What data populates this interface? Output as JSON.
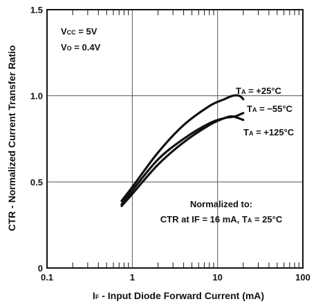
{
  "chart_data": {
    "type": "line",
    "x_scale": "log",
    "xlim": [
      0.1,
      100
    ],
    "ylim": [
      0,
      1.5
    ],
    "x_ticks": [
      "0.1",
      "1",
      "10",
      "100"
    ],
    "y_ticks": [
      "0",
      "0.5",
      "1.0",
      "1.5"
    ],
    "xlabel": {
      "main": "I",
      "sub": "F",
      "rest": " - Input Diode Forward Current (mA)"
    },
    "ylabel": "CTR - Normalized Current Transfer Ratio",
    "grid": true,
    "conditions": [
      {
        "main": "V",
        "sub": "CC",
        "rest": " = 5V"
      },
      {
        "main": "V",
        "sub": "O",
        "rest": " = 0.4V"
      }
    ],
    "note": {
      "line1": "Normalized to:",
      "line2_prefix": "CTR at IF = 16 mA, T",
      "line2_sub": "A",
      "line2_rest": " = 25°C"
    },
    "series": [
      {
        "main": "T",
        "sub": "A",
        "rest": " = +25°C",
        "x": [
          0.75,
          1.0,
          2.0,
          4.0,
          8.0,
          12.0,
          15.0,
          18.0,
          20.0
        ],
        "y": [
          0.39,
          0.47,
          0.67,
          0.83,
          0.94,
          0.98,
          1.0,
          1.0,
          0.98
        ]
      },
      {
        "main": "T",
        "sub": "A",
        "rest": " = −55°C",
        "x": [
          0.75,
          1.0,
          2.0,
          4.0,
          8.0,
          12.0,
          16.0,
          20.0
        ],
        "y": [
          0.37,
          0.45,
          0.63,
          0.75,
          0.84,
          0.87,
          0.88,
          0.9
        ]
      },
      {
        "main": "T",
        "sub": "A",
        "rest": " = +125°C",
        "x": [
          0.75,
          1.0,
          2.0,
          4.0,
          8.0,
          12.0,
          15.0,
          20.0
        ],
        "y": [
          0.36,
          0.43,
          0.6,
          0.73,
          0.83,
          0.87,
          0.88,
          0.86
        ]
      }
    ]
  }
}
